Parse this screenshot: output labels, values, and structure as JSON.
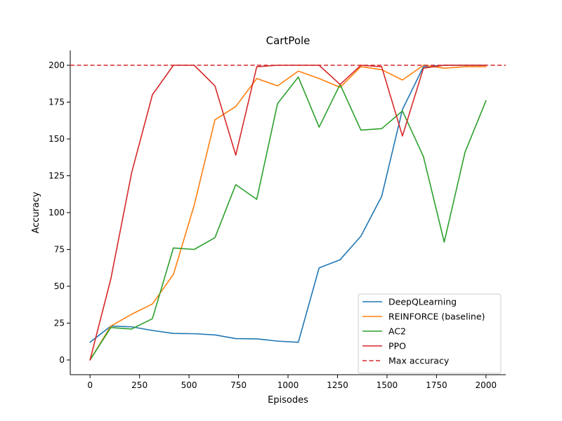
{
  "chart_data": {
    "type": "line",
    "title": "CartPole",
    "xlabel": "Episodes",
    "ylabel": "Accuracy",
    "xlim": [
      -100,
      2100
    ],
    "ylim": [
      -10,
      210
    ],
    "xticks": [
      0,
      250,
      500,
      750,
      1000,
      1250,
      1500,
      1750,
      2000
    ],
    "yticks": [
      0,
      25,
      50,
      75,
      100,
      125,
      150,
      175,
      200
    ],
    "x": [
      0,
      105,
      210,
      315,
      421,
      526,
      631,
      736,
      842,
      947,
      1052,
      1157,
      1263,
      1368,
      1473,
      1578,
      1684,
      1789,
      1894,
      2000
    ],
    "series": [
      {
        "name": "DeepQLearning",
        "color": "#1f77b4",
        "values": [
          12,
          23,
          22.5,
          20,
          18,
          17.8,
          17,
          14.5,
          14.3,
          12.8,
          12,
          62.5,
          68,
          84,
          111,
          170,
          199,
          200,
          200,
          200
        ]
      },
      {
        "name": "REINFORCE (baseline)",
        "color": "#ff7f0e",
        "values": [
          0,
          23,
          31,
          38,
          58,
          105,
          163,
          172,
          191,
          186,
          196,
          191,
          185,
          199,
          197,
          190,
          200,
          198,
          199,
          199
        ]
      },
      {
        "name": "AC2",
        "color": "#2ca02c",
        "values": [
          0,
          22,
          21,
          28,
          76,
          75,
          83,
          119,
          109,
          174,
          192,
          158,
          187,
          156,
          157,
          169,
          138,
          80,
          141,
          176
        ]
      },
      {
        "name": "PPO",
        "color": "#d62728",
        "values": [
          0,
          55,
          127,
          180,
          200,
          200,
          186,
          139,
          199,
          200,
          200,
          200,
          187,
          200,
          199,
          152,
          198,
          200,
          200,
          200
        ]
      }
    ],
    "reference_line": {
      "name": "Max accuracy",
      "y": 200,
      "color": "#d62728",
      "style": "dashed"
    },
    "legend_position": "lower-right"
  }
}
